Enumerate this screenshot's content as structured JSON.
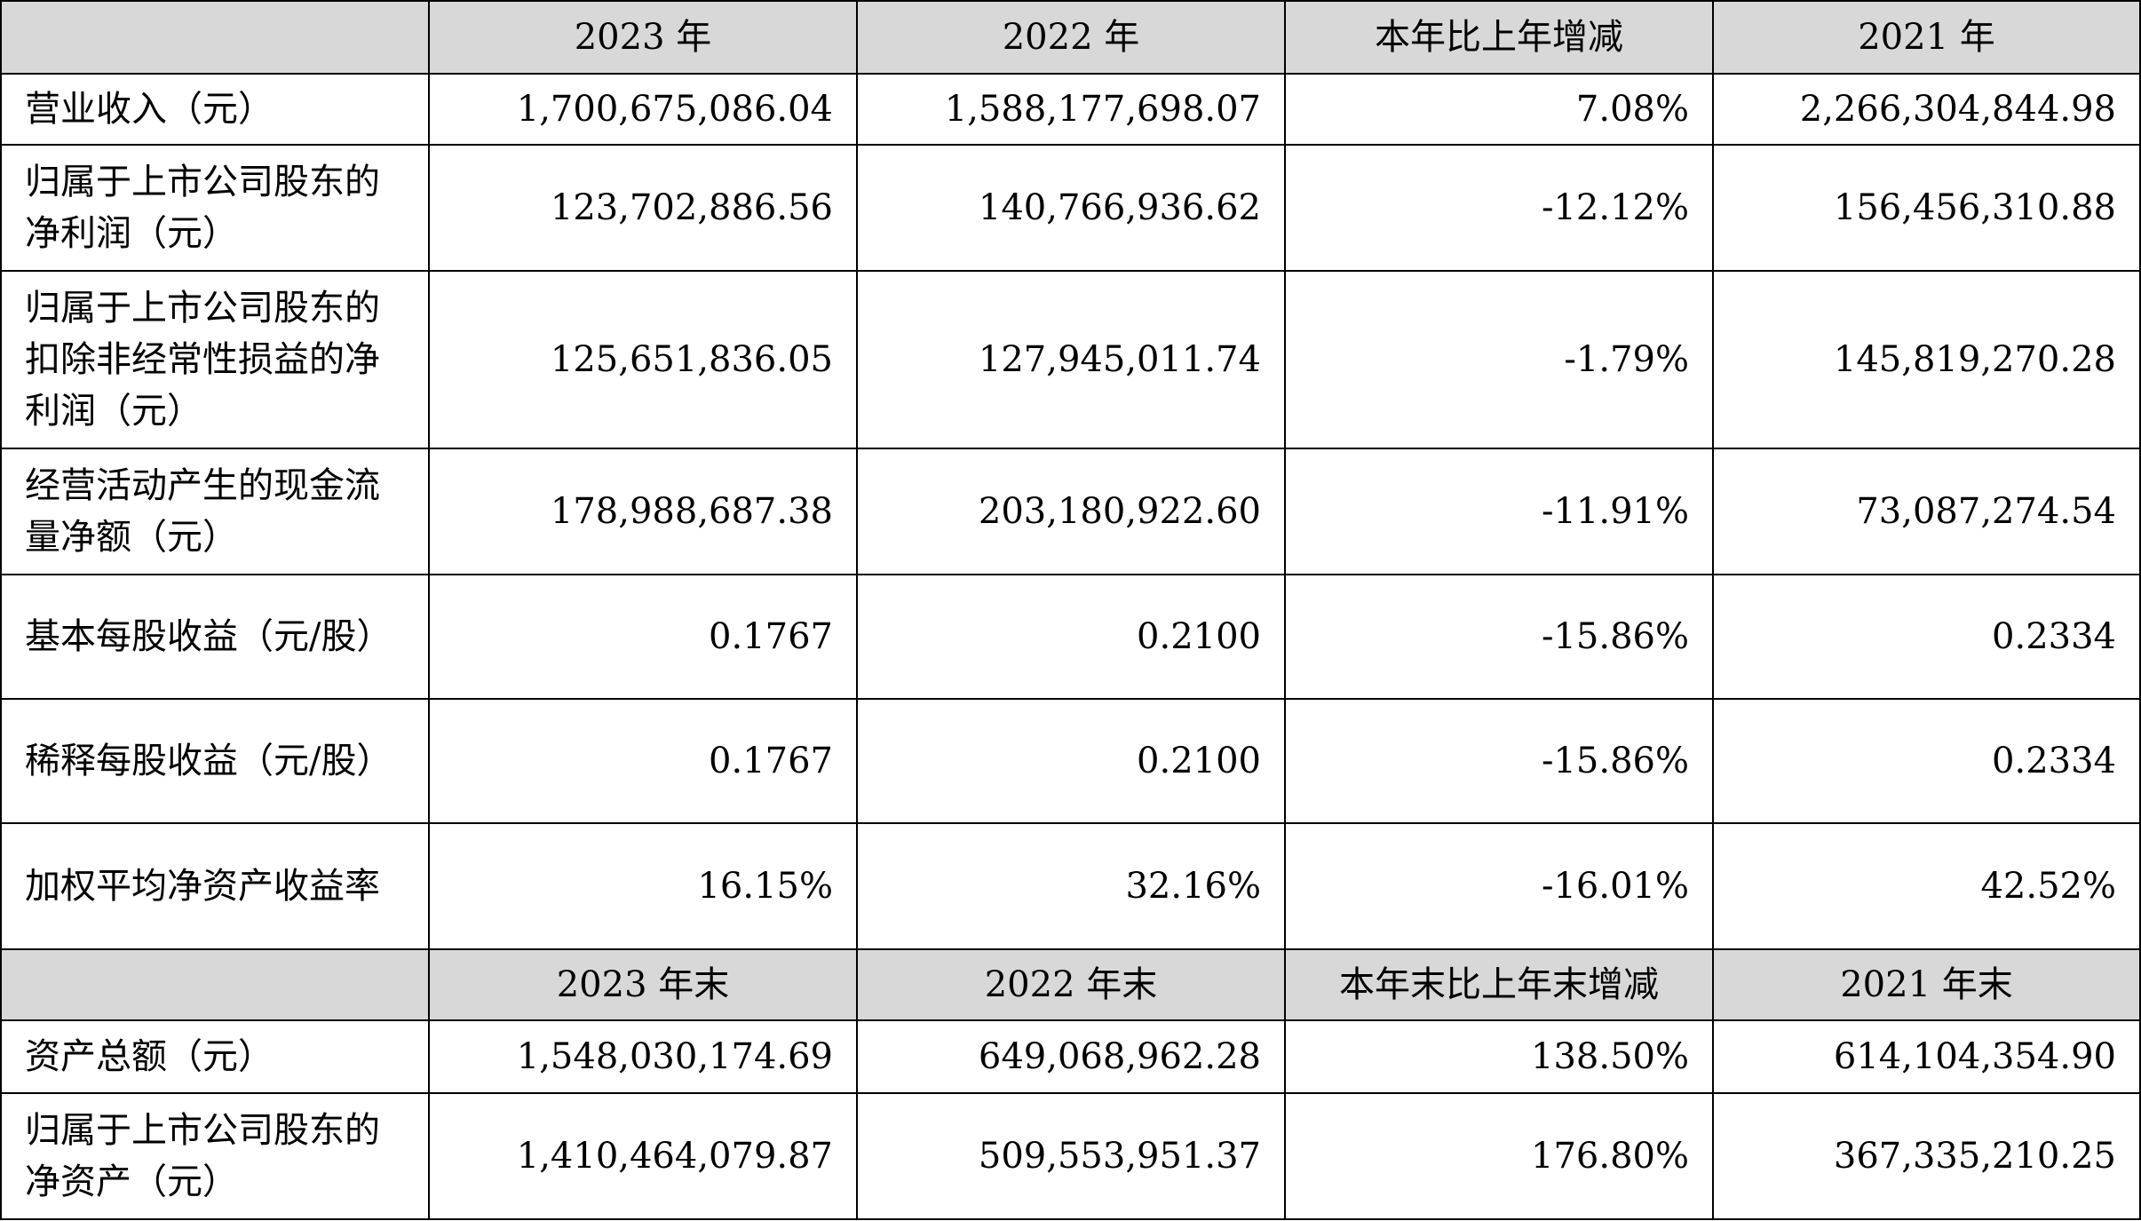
{
  "header1": [
    "",
    "2023 年",
    "2022 年",
    "本年比上年增减",
    "2021 年"
  ],
  "rows1": [
    {
      "label": "营业收入（元）",
      "values": [
        "1,700,675,086.04",
        "1,588,177,698.07",
        "7.08%",
        "2,266,304,844.98"
      ]
    },
    {
      "label": "归属于上市公司股东的净利润（元）",
      "values": [
        "123,702,886.56",
        "140,766,936.62",
        "-12.12%",
        "156,456,310.88"
      ]
    },
    {
      "label": "归属于上市公司股东的扣除非经常性损益的净利润（元）",
      "values": [
        "125,651,836.05",
        "127,945,011.74",
        "-1.79%",
        "145,819,270.28"
      ]
    },
    {
      "label": "经营活动产生的现金流量净额（元）",
      "values": [
        "178,988,687.38",
        "203,180,922.60",
        "-11.91%",
        "73,087,274.54"
      ]
    },
    {
      "label": "基本每股收益（元/股）",
      "values": [
        "0.1767",
        "0.2100",
        "-15.86%",
        "0.2334"
      ]
    },
    {
      "label": "稀释每股收益（元/股）",
      "values": [
        "0.1767",
        "0.2100",
        "-15.86%",
        "0.2334"
      ]
    },
    {
      "label": "加权平均净资产收益率",
      "values": [
        "16.15%",
        "32.16%",
        "-16.01%",
        "42.52%"
      ]
    }
  ],
  "header2": [
    "",
    "2023 年末",
    "2022 年末",
    "本年末比上年末增减",
    "2021 年末"
  ],
  "rows2": [
    {
      "label": "资产总额（元）",
      "values": [
        "1,548,030,174.69",
        "649,068,962.28",
        "138.50%",
        "614,104,354.90"
      ]
    },
    {
      "label": "归属于上市公司股东的净资产（元）",
      "values": [
        "1,410,464,079.87",
        "509,553,951.37",
        "176.80%",
        "367,335,210.25"
      ]
    }
  ]
}
